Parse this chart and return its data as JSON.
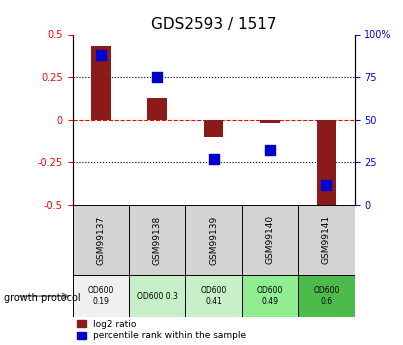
{
  "title": "GDS2593 / 1517",
  "samples": [
    "GSM99137",
    "GSM99138",
    "GSM99139",
    "GSM99140",
    "GSM99141"
  ],
  "log2_ratio": [
    0.43,
    0.13,
    -0.1,
    -0.02,
    -0.53
  ],
  "percentile_rank": [
    88,
    75,
    27,
    32,
    12
  ],
  "ylim_left": [
    -0.5,
    0.5
  ],
  "ylim_right": [
    0,
    100
  ],
  "bar_color": "#8B1A1A",
  "dot_color": "#0000CD",
  "growth_protocol_labels": [
    "OD600\n0.19",
    "OD600 0.3",
    "OD600\n0.41",
    "OD600\n0.49",
    "OD600\n0.6"
  ],
  "growth_protocol_colors": [
    "#f0f0f0",
    "#c8f0c8",
    "#c8f0c8",
    "#90ee90",
    "#4cbb4c"
  ],
  "yticks_left": [
    -0.5,
    -0.25,
    0,
    0.25,
    0.5
  ],
  "yticks_right": [
    0,
    25,
    50,
    75,
    100
  ],
  "yticks_right_labels": [
    "0",
    "25",
    "50",
    "75",
    "100%"
  ],
  "legend_red_label": "log2 ratio",
  "legend_blue_label": "percentile rank within the sample",
  "growth_protocol_text": "growth protocol"
}
